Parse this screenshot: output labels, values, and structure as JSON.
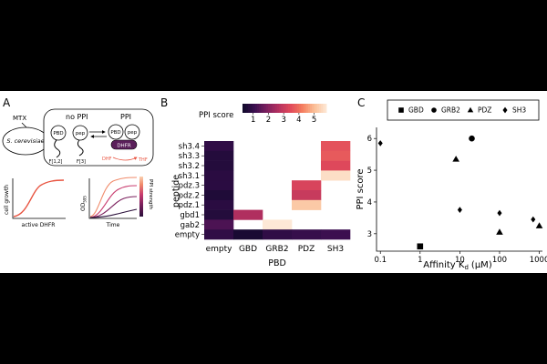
{
  "panel_labels": [
    "A",
    "B",
    "C"
  ],
  "panel_a": {
    "mtx": "MTX",
    "yeast": "S. cerevisiae",
    "no_ppi": "no PPI",
    "ppi": "PPI",
    "pbd": "PBD",
    "pep": "pep",
    "frag_a": "F[1,2]",
    "frag_b": "F[3]",
    "dhfr": "DHFR",
    "dhf": "DHF",
    "thf": "THF",
    "growth_ylabel": "cell growth",
    "growth_xlabel": "active DHFR",
    "od_ylabel_main": "OD",
    "od_ylabel_sub": "595",
    "od_xlabel": "Time",
    "strength_label": "PPI strength",
    "growth_curve_color": "#e8533f",
    "strength_colors": [
      "#2a0f3a",
      "#7a1f5c",
      "#c83b6e",
      "#f08a6a",
      "#fbd0b0"
    ]
  },
  "chart_data": [
    {
      "type": "heatmap",
      "title": "",
      "xlabel": "PBD",
      "ylabel": "peptide",
      "x_categories": [
        "empty",
        "GBD",
        "GRB2",
        "PDZ",
        "SH3"
      ],
      "y_categories": [
        "sh3.4",
        "sh3.3",
        "sh3.2",
        "sh3.1",
        "pdz.3",
        "pdz.2",
        "pdz.1",
        "gbd1",
        "gab2",
        "empty"
      ],
      "colorbar_label": "PPI score",
      "colorbar_ticks": [
        1,
        2,
        3,
        4,
        5
      ],
      "color_range": [
        0.3,
        5.8
      ],
      "colormap": [
        "#0d0829",
        "#3b0f4f",
        "#7b1f5e",
        "#b4305f",
        "#e0495b",
        "#f47d5e",
        "#fbbf97",
        "#fde8d6"
      ],
      "empty_cell_color": "#ffffff",
      "cells": [
        {
          "x": "empty",
          "y": "sh3.4",
          "value": 0.9
        },
        {
          "x": "empty",
          "y": "sh3.3",
          "value": 0.7
        },
        {
          "x": "empty",
          "y": "sh3.2",
          "value": 0.7
        },
        {
          "x": "empty",
          "y": "sh3.1",
          "value": 0.8
        },
        {
          "x": "empty",
          "y": "pdz.3",
          "value": 0.8
        },
        {
          "x": "empty",
          "y": "pdz.2",
          "value": 0.6
        },
        {
          "x": "empty",
          "y": "pdz.1",
          "value": 0.8
        },
        {
          "x": "empty",
          "y": "gbd1",
          "value": 0.7
        },
        {
          "x": "empty",
          "y": "gab2",
          "value": 1.3
        },
        {
          "x": "empty",
          "y": "empty",
          "value": 0.9
        },
        {
          "x": "GBD",
          "y": "gbd1",
          "value": 2.6
        },
        {
          "x": "GBD",
          "y": "empty",
          "value": 0.5
        },
        {
          "x": "GRB2",
          "y": "gab2",
          "value": 5.8
        },
        {
          "x": "GRB2",
          "y": "empty",
          "value": 0.9
        },
        {
          "x": "PDZ",
          "y": "pdz.3",
          "value": 3.3
        },
        {
          "x": "PDZ",
          "y": "pdz.2",
          "value": 3.0
        },
        {
          "x": "PDZ",
          "y": "pdz.1",
          "value": 5.2
        },
        {
          "x": "PDZ",
          "y": "empty",
          "value": 1.0
        },
        {
          "x": "SH3",
          "y": "sh3.4",
          "value": 3.6
        },
        {
          "x": "SH3",
          "y": "sh3.3",
          "value": 3.7
        },
        {
          "x": "SH3",
          "y": "sh3.2",
          "value": 3.4
        },
        {
          "x": "SH3",
          "y": "sh3.1",
          "value": 5.6
        },
        {
          "x": "SH3",
          "y": "empty",
          "value": 1.1
        }
      ]
    },
    {
      "type": "scatter",
      "title": "",
      "xlabel": "Affinity K",
      "xlabel_sub": "d",
      "xlabel_unit": "(μM)",
      "ylabel": "PPI score",
      "xscale": "log",
      "xlim": [
        0.08,
        1200
      ],
      "ylim": [
        2.45,
        6.35
      ],
      "x_ticks": [
        0.1,
        1,
        10,
        100,
        1000
      ],
      "x_tick_labels": [
        "0.1",
        "1",
        "10",
        "100",
        "1000"
      ],
      "y_ticks": [
        3,
        4,
        5,
        6
      ],
      "legend_position": "top",
      "series": [
        {
          "name": "GBD",
          "marker": "square",
          "points": [
            {
              "x": 1,
              "y": 2.6
            }
          ]
        },
        {
          "name": "GRB2",
          "marker": "circle",
          "points": [
            {
              "x": 20,
              "y": 6.0
            }
          ]
        },
        {
          "name": "PDZ",
          "marker": "triangle",
          "points": [
            {
              "x": 8,
              "y": 5.35
            },
            {
              "x": 100,
              "y": 3.05
            },
            {
              "x": 1000,
              "y": 3.25
            }
          ]
        },
        {
          "name": "SH3",
          "marker": "diamond",
          "points": [
            {
              "x": 0.1,
              "y": 5.85
            },
            {
              "x": 10,
              "y": 3.75
            },
            {
              "x": 100,
              "y": 3.65
            },
            {
              "x": 700,
              "y": 3.45
            }
          ]
        }
      ]
    }
  ]
}
